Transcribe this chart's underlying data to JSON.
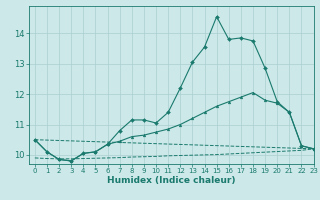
{
  "title": "",
  "xlabel": "Humidex (Indice chaleur)",
  "bg_color": "#cce8e8",
  "grid_color": "#aacfcf",
  "line_color": "#1a7a6e",
  "xlim": [
    -0.5,
    23
  ],
  "ylim": [
    9.7,
    14.9
  ],
  "xticks": [
    0,
    1,
    2,
    3,
    4,
    5,
    6,
    7,
    8,
    9,
    10,
    11,
    12,
    13,
    14,
    15,
    16,
    17,
    18,
    19,
    20,
    21,
    22,
    23
  ],
  "yticks": [
    10,
    11,
    12,
    13,
    14
  ],
  "line1_x": [
    0,
    1,
    2,
    3,
    4,
    5,
    6,
    7,
    8,
    9,
    10,
    11,
    12,
    13,
    14,
    15,
    16,
    17,
    18,
    19,
    20,
    21,
    22,
    23
  ],
  "line1_y": [
    10.5,
    10.1,
    9.85,
    9.8,
    10.05,
    10.1,
    10.35,
    10.8,
    11.15,
    11.15,
    11.05,
    11.4,
    12.2,
    13.05,
    13.55,
    14.55,
    13.8,
    13.85,
    13.75,
    12.85,
    11.75,
    11.4,
    10.3,
    10.2
  ],
  "line2_x": [
    0,
    1,
    2,
    3,
    4,
    5,
    6,
    7,
    8,
    9,
    10,
    11,
    12,
    13,
    14,
    15,
    16,
    17,
    18,
    19,
    20,
    21,
    22,
    23
  ],
  "line2_y": [
    10.5,
    10.1,
    9.85,
    9.8,
    10.05,
    10.1,
    10.35,
    10.45,
    10.6,
    10.65,
    10.75,
    10.85,
    11.0,
    11.2,
    11.4,
    11.6,
    11.75,
    11.9,
    12.05,
    11.8,
    11.7,
    11.4,
    10.3,
    10.2
  ],
  "line3_x": [
    0,
    23
  ],
  "line3_y": [
    10.5,
    10.2
  ],
  "line4_x": [
    0,
    1,
    2,
    3,
    4,
    5,
    6,
    7,
    8,
    9,
    10,
    11,
    12,
    13,
    14,
    15,
    16,
    17,
    18,
    19,
    20,
    21,
    22,
    23
  ],
  "line4_y": [
    9.9,
    9.88,
    9.87,
    9.87,
    9.88,
    9.89,
    9.9,
    9.91,
    9.93,
    9.94,
    9.95,
    9.97,
    9.98,
    9.99,
    10.0,
    10.01,
    10.03,
    10.05,
    10.07,
    10.09,
    10.11,
    10.13,
    10.15,
    10.2
  ]
}
